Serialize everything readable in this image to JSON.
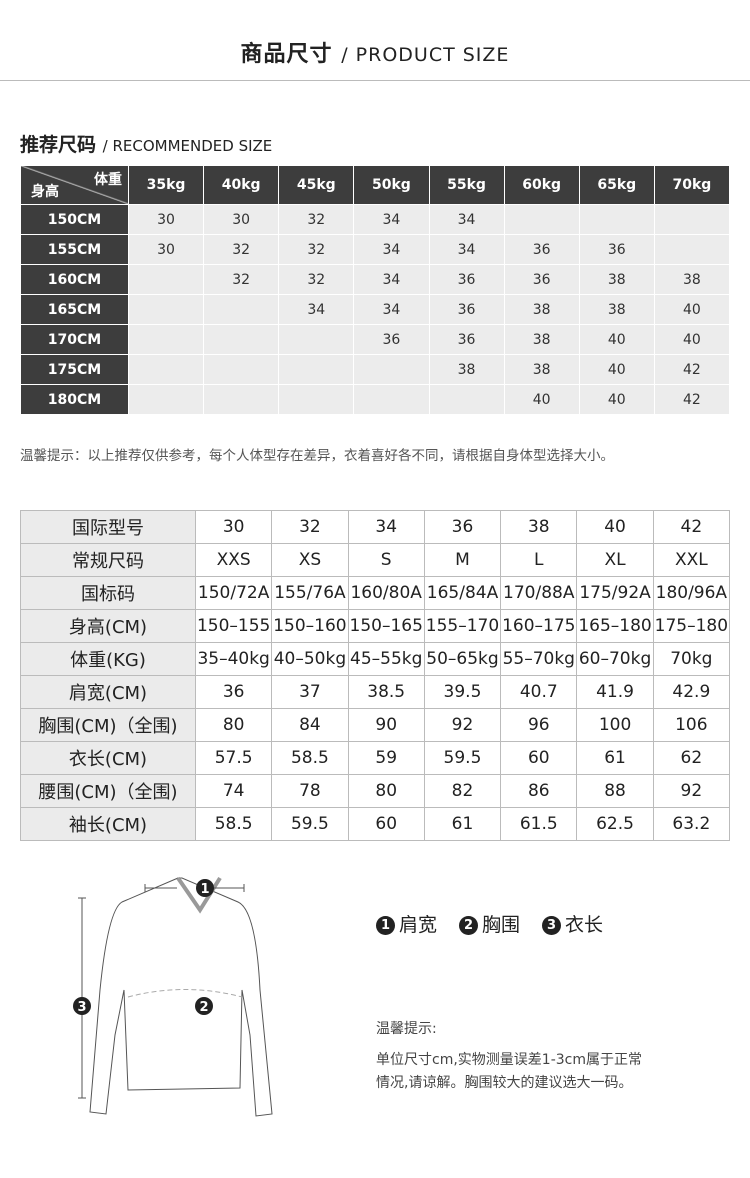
{
  "header": {
    "title_cn": "商品尺寸",
    "title_en": "/ PRODUCT SIZE"
  },
  "recommended": {
    "title_cn": "推荐尺码",
    "title_en": "/ RECOMMENDED SIZE",
    "corner_weight": "体重",
    "corner_height": "身高",
    "weights": [
      "35kg",
      "40kg",
      "45kg",
      "50kg",
      "55kg",
      "60kg",
      "65kg",
      "70kg"
    ],
    "rows": [
      {
        "height": "150CM",
        "sizes": [
          "30",
          "30",
          "32",
          "34",
          "34",
          "",
          "",
          ""
        ]
      },
      {
        "height": "155CM",
        "sizes": [
          "30",
          "32",
          "32",
          "34",
          "34",
          "36",
          "36",
          ""
        ]
      },
      {
        "height": "160CM",
        "sizes": [
          "",
          "32",
          "32",
          "34",
          "36",
          "36",
          "38",
          "38"
        ]
      },
      {
        "height": "165CM",
        "sizes": [
          "",
          "",
          "34",
          "34",
          "36",
          "38",
          "38",
          "40"
        ]
      },
      {
        "height": "170CM",
        "sizes": [
          "",
          "",
          "",
          "36",
          "36",
          "38",
          "40",
          "40"
        ]
      },
      {
        "height": "175CM",
        "sizes": [
          "",
          "",
          "",
          "",
          "38",
          "38",
          "40",
          "42"
        ]
      },
      {
        "height": "180CM",
        "sizes": [
          "",
          "",
          "",
          "",
          "",
          "40",
          "40",
          "42"
        ]
      }
    ],
    "note": "温馨提示：以上推荐仅供参考，每个人体型存在差异，衣着喜好各不同，请根据自身体型选择大小。"
  },
  "size_table": {
    "rows": [
      {
        "label": "国际型号",
        "values": [
          "30",
          "32",
          "34",
          "36",
          "38",
          "40",
          "42"
        ]
      },
      {
        "label": "常规尺码",
        "values": [
          "XXS",
          "XS",
          "S",
          "M",
          "L",
          "XL",
          "XXL"
        ]
      },
      {
        "label": "国标码",
        "values": [
          "150/72A",
          "155/76A",
          "160/80A",
          "165/84A",
          "170/88A",
          "175/92A",
          "180/96A"
        ]
      },
      {
        "label": "身高(CM)",
        "values": [
          "150–155",
          "150–160",
          "150–165",
          "155–170",
          "160–175",
          "165–180",
          "175–180"
        ]
      },
      {
        "label": "体重(KG)",
        "values": [
          "35–40kg",
          "40–50kg",
          "45–55kg",
          "50–65kg",
          "55–70kg",
          "60–70kg",
          "70kg"
        ]
      },
      {
        "label": "肩宽(CM)",
        "values": [
          "36",
          "37",
          "38.5",
          "39.5",
          "40.7",
          "41.9",
          "42.9"
        ]
      },
      {
        "label": "胸围(CM)（全围)",
        "values": [
          "80",
          "84",
          "90",
          "92",
          "96",
          "100",
          "106"
        ]
      },
      {
        "label": "衣长(CM)",
        "values": [
          "57.5",
          "58.5",
          "59",
          "59.5",
          "60",
          "61",
          "62"
        ]
      },
      {
        "label": "腰围(CM)（全围)",
        "values": [
          "74",
          "78",
          "80",
          "82",
          "86",
          "88",
          "92"
        ]
      },
      {
        "label": "袖长(CM)",
        "values": [
          "58.5",
          "59.5",
          "60",
          "61",
          "61.5",
          "62.5",
          "63.2"
        ]
      }
    ]
  },
  "diagram": {
    "markers": [
      "1",
      "2",
      "3"
    ],
    "legend": [
      {
        "num": "1",
        "label": "肩宽"
      },
      {
        "num": "2",
        "label": "胸围"
      },
      {
        "num": "3",
        "label": "衣长"
      }
    ],
    "tip_title": "温馨提示:",
    "tip_lines": [
      "单位尺寸cm,实物测量误差1-3cm属于正常",
      "情况,请谅解。胸围较大的建议选大一码。"
    ]
  }
}
